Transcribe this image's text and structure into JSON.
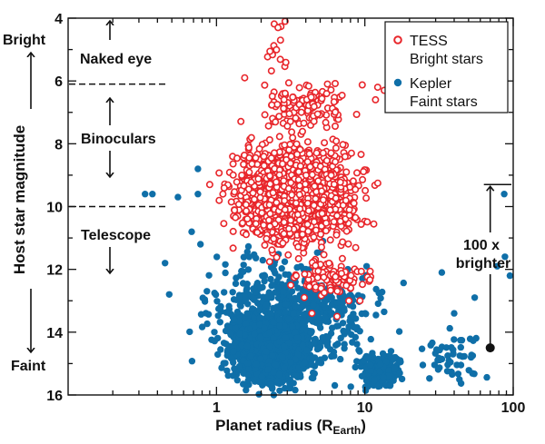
{
  "chart_data": {
    "type": "scatter",
    "x_scale": "log",
    "xlim": [
      0.1,
      100
    ],
    "ylim": [
      16,
      4
    ],
    "y_inverted": true,
    "xlabel": "Planet radius (R",
    "xlabel_sub": "Earth",
    "xlabel_close": ")",
    "ylabel": "Host star magnitude",
    "x_ticks": [
      1,
      10,
      100
    ],
    "x_tick_labels": [
      "1",
      "10",
      "100"
    ],
    "y_ticks": [
      4,
      6,
      8,
      10,
      12,
      14,
      16
    ],
    "y_tick_labels": [
      "4",
      "6",
      "8",
      "10",
      "12",
      "14",
      "16"
    ],
    "grid": false,
    "legend_position": "top-right",
    "series": [
      {
        "name": "TESS Bright stars",
        "legend_line1": "TESS",
        "legend_line2": "Bright stars",
        "marker": "open-circle",
        "color": "#e8262b",
        "clusters": [
          {
            "x_range": [
              0.85,
              14
            ],
            "y_range": [
              7.5,
              11.8
            ],
            "count": 1500
          },
          {
            "x_range": [
              1.4,
              12
            ],
            "y_range": [
              5.8,
              7.8
            ],
            "count": 120
          },
          {
            "x_range": [
              1.8,
              3.5
            ],
            "y_range": [
              4.0,
              6.0
            ],
            "count": 12
          },
          {
            "x_range": [
              2.5,
              14
            ],
            "y_range": [
              11.5,
              13.0
            ],
            "count": 110
          }
        ],
        "points": [
          {
            "x": 2.6,
            "y": 4.3
          },
          {
            "x": 2.9,
            "y": 4.1
          },
          {
            "x": 2.7,
            "y": 4.7
          },
          {
            "x": 1.55,
            "y": 5.9
          },
          {
            "x": 5.6,
            "y": 6.1
          },
          {
            "x": 12.2,
            "y": 6.2
          },
          {
            "x": 13.5,
            "y": 6.3
          },
          {
            "x": 11.8,
            "y": 6.6
          },
          {
            "x": 0.9,
            "y": 9.3
          },
          {
            "x": 4.4,
            "y": 13.4
          },
          {
            "x": 6.5,
            "y": 13.5
          }
        ]
      },
      {
        "name": "Kepler Faint stars",
        "legend_line1": "Kepler",
        "legend_line2": "Faint stars",
        "marker": "filled-circle",
        "color": "#0f6fa8",
        "clusters": [
          {
            "x_range": [
              1.0,
              5.5
            ],
            "y_range": [
              13.0,
              16.0
            ],
            "count": 1600
          },
          {
            "x_range": [
              0.5,
              20
            ],
            "y_range": [
              11.0,
              16.0
            ],
            "count": 700
          },
          {
            "x_range": [
              8,
              20
            ],
            "y_range": [
              14.5,
              16.0
            ],
            "count": 180
          },
          {
            "x_range": [
              20,
              80
            ],
            "y_range": [
              13.5,
              16.0
            ],
            "count": 50
          }
        ],
        "points": [
          {
            "x": 0.33,
            "y": 9.6
          },
          {
            "x": 0.37,
            "y": 9.6
          },
          {
            "x": 0.55,
            "y": 9.7
          },
          {
            "x": 0.75,
            "y": 9.6
          },
          {
            "x": 0.75,
            "y": 8.8
          },
          {
            "x": 0.78,
            "y": 11.2
          },
          {
            "x": 0.68,
            "y": 10.8
          },
          {
            "x": 0.45,
            "y": 11.8
          },
          {
            "x": 0.48,
            "y": 12.8
          },
          {
            "x": 87,
            "y": 9.6
          },
          {
            "x": 88,
            "y": 11.6
          },
          {
            "x": 78,
            "y": 11.9
          },
          {
            "x": 95,
            "y": 12.2
          },
          {
            "x": 55,
            "y": 12.9
          },
          {
            "x": 33,
            "y": 12.1
          },
          {
            "x": 40,
            "y": 13.4
          },
          {
            "x": 52,
            "y": 14.8
          }
        ]
      }
    ],
    "annotations": {
      "naked_eye": "Naked eye",
      "binoculars": "Binoculars",
      "telescope": "Telescope",
      "bright": "Bright",
      "faint": "Faint",
      "brighter_line1": "100 x",
      "brighter_line2": "brighter",
      "naked_eye_limit": 6.1,
      "binoculars_limit": 10.0,
      "brighter_from": 14.5,
      "brighter_to": 9.3,
      "brighter_x": 70
    }
  }
}
